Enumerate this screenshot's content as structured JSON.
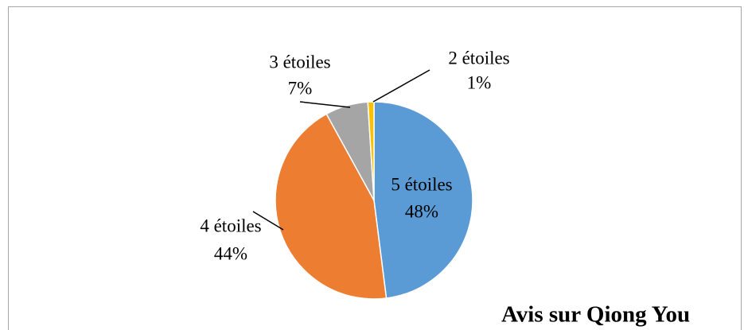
{
  "chart_data": {
    "type": "pie",
    "title": "Avis sur Qiong You",
    "categories": [
      "5 étoiles",
      "4 étoiles",
      "3 étoiles",
      "2 étoiles"
    ],
    "values": [
      48,
      44,
      7,
      1
    ],
    "value_labels": [
      "48%",
      "44%",
      "7%",
      "1%"
    ],
    "colors": [
      "#5b9bd5",
      "#ed7d31",
      "#a5a5a5",
      "#ffc000"
    ]
  }
}
